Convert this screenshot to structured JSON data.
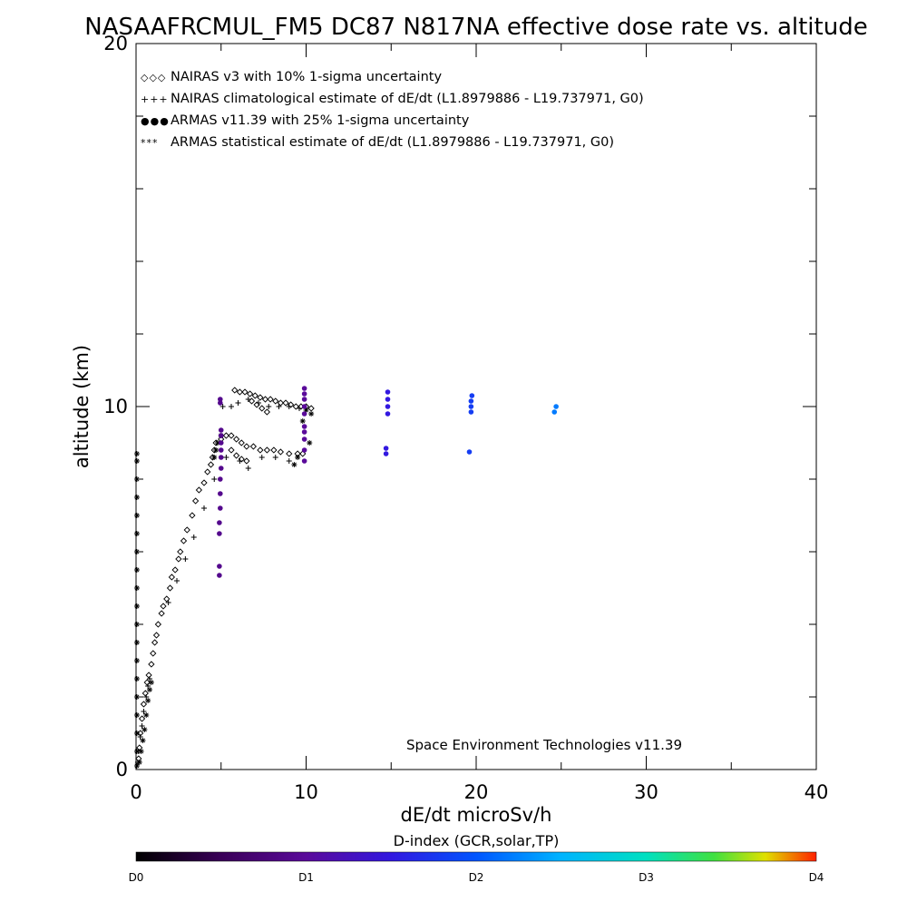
{
  "chart_data": {
    "type": "scatter",
    "title": "NASAAFRCMUL_FM5 DC87 N817NA effective dose rate vs. altitude",
    "xlabel": "dE/dt microSv/h",
    "ylabel": "altitude (km)",
    "xlim": [
      0,
      40
    ],
    "ylim": [
      0,
      20
    ],
    "x_ticks": [
      0,
      10,
      20,
      30,
      40
    ],
    "x_minor_step": 5,
    "y_ticks": [
      0,
      10,
      20
    ],
    "y_minor_step": 2,
    "grid": false,
    "legend_position": "top-left",
    "annotation": "Space Environment Technologies v11.39",
    "legend": [
      {
        "marker": "◇◇◇",
        "text": "NAIRAS v3 with 10% 1-sigma uncertainty",
        "color": "#000000"
      },
      {
        "marker": "+++",
        "text": "NAIRAS climatological estimate of dE/dt (L1.8979886 - L19.737971, G0)",
        "color": "#000000"
      },
      {
        "marker": "●●●",
        "text": "ARMAS v11.39 with 25% 1-sigma uncertainty",
        "color": "#1e32dc"
      },
      {
        "marker": "***",
        "text": "ARMAS statistical estimate of dE/dt (L1.8979886 - L19.737971, G0)",
        "color": "#000000"
      }
    ],
    "series": [
      {
        "name": "NAIRAS v3 with 10% 1-sigma uncertainty",
        "marker": "diamond",
        "color": "#000000",
        "points": [
          [
            0.15,
            0.3
          ],
          [
            0.2,
            0.6
          ],
          [
            0.25,
            1.0
          ],
          [
            0.35,
            1.4
          ],
          [
            0.45,
            1.8
          ],
          [
            0.55,
            2.1
          ],
          [
            0.65,
            2.4
          ],
          [
            0.75,
            2.6
          ],
          [
            0.9,
            2.9
          ],
          [
            1.0,
            3.2
          ],
          [
            1.1,
            3.5
          ],
          [
            1.2,
            3.7
          ],
          [
            1.3,
            4.0
          ],
          [
            1.5,
            4.3
          ],
          [
            1.6,
            4.5
          ],
          [
            1.8,
            4.7
          ],
          [
            2.0,
            5.0
          ],
          [
            2.1,
            5.3
          ],
          [
            2.3,
            5.5
          ],
          [
            2.5,
            5.8
          ],
          [
            2.6,
            6.0
          ],
          [
            2.8,
            6.3
          ],
          [
            3.0,
            6.6
          ],
          [
            3.3,
            7.0
          ],
          [
            3.5,
            7.4
          ],
          [
            3.7,
            7.7
          ],
          [
            4.0,
            7.9
          ],
          [
            4.2,
            8.2
          ],
          [
            4.4,
            8.4
          ],
          [
            4.5,
            8.6
          ],
          [
            4.6,
            8.8
          ],
          [
            4.7,
            9.0
          ],
          [
            5.0,
            9.1
          ],
          [
            5.3,
            9.2
          ],
          [
            5.6,
            9.2
          ],
          [
            5.9,
            9.1
          ],
          [
            6.2,
            9.0
          ],
          [
            6.5,
            8.9
          ],
          [
            6.9,
            8.9
          ],
          [
            7.3,
            8.8
          ],
          [
            7.7,
            8.8
          ],
          [
            8.1,
            8.8
          ],
          [
            8.5,
            8.75
          ],
          [
            9.0,
            8.7
          ],
          [
            9.5,
            8.7
          ],
          [
            9.8,
            8.7
          ],
          [
            5.6,
            8.8
          ],
          [
            5.9,
            8.65
          ],
          [
            6.2,
            8.55
          ],
          [
            6.5,
            8.5
          ],
          [
            5.8,
            10.45
          ],
          [
            6.1,
            10.4
          ],
          [
            6.4,
            10.4
          ],
          [
            6.7,
            10.35
          ],
          [
            7.0,
            10.3
          ],
          [
            7.3,
            10.25
          ],
          [
            7.6,
            10.2
          ],
          [
            7.9,
            10.2
          ],
          [
            8.2,
            10.15
          ],
          [
            8.5,
            10.1
          ],
          [
            8.8,
            10.1
          ],
          [
            9.1,
            10.05
          ],
          [
            9.4,
            10.0
          ],
          [
            9.7,
            10.0
          ],
          [
            10.0,
            10.0
          ],
          [
            10.3,
            9.95
          ],
          [
            6.8,
            10.15
          ],
          [
            7.1,
            10.05
          ],
          [
            7.4,
            9.95
          ],
          [
            7.7,
            9.85
          ]
        ]
      },
      {
        "name": "NAIRAS climatological estimate of dE/dt (L1.8979886 - L19.737971, G0)",
        "marker": "plus",
        "color": "#000000",
        "points": [
          [
            0.1,
            0.2
          ],
          [
            0.15,
            0.5
          ],
          [
            0.25,
            0.9
          ],
          [
            0.35,
            1.2
          ],
          [
            0.45,
            1.6
          ],
          [
            0.6,
            2.0
          ],
          [
            0.7,
            2.3
          ],
          [
            0.8,
            2.5
          ],
          [
            1.9,
            4.6
          ],
          [
            2.4,
            5.2
          ],
          [
            2.9,
            5.8
          ],
          [
            3.4,
            6.4
          ],
          [
            4.0,
            7.2
          ],
          [
            4.6,
            8.0
          ],
          [
            5.1,
            10.0
          ],
          [
            5.6,
            10.0
          ],
          [
            6.0,
            10.1
          ],
          [
            6.6,
            10.2
          ],
          [
            7.2,
            10.1
          ],
          [
            7.8,
            10.0
          ],
          [
            8.4,
            10.0
          ],
          [
            9.0,
            10.0
          ],
          [
            9.6,
            9.95
          ],
          [
            5.3,
            8.6
          ],
          [
            6.1,
            8.5
          ],
          [
            6.6,
            8.3
          ],
          [
            7.4,
            8.6
          ],
          [
            8.2,
            8.6
          ],
          [
            9.0,
            8.5
          ]
        ]
      },
      {
        "name": "ARMAS statistical estimate of dE/dt (L1.8979886 - L19.737971, G0)",
        "marker": "asterisk",
        "color": "#000000",
        "points": [
          [
            0.05,
            0.1
          ],
          [
            0.05,
            0.5
          ],
          [
            0.05,
            1.0
          ],
          [
            0.05,
            1.5
          ],
          [
            0.05,
            2.0
          ],
          [
            0.05,
            2.5
          ],
          [
            0.05,
            3.0
          ],
          [
            0.05,
            3.5
          ],
          [
            0.05,
            4.0
          ],
          [
            0.05,
            4.5
          ],
          [
            0.05,
            5.0
          ],
          [
            0.05,
            5.5
          ],
          [
            0.05,
            6.0
          ],
          [
            0.05,
            6.5
          ],
          [
            0.05,
            7.0
          ],
          [
            0.05,
            7.5
          ],
          [
            0.05,
            8.0
          ],
          [
            0.05,
            8.5
          ],
          [
            0.05,
            8.7
          ],
          [
            0.2,
            0.2
          ],
          [
            0.3,
            0.5
          ],
          [
            0.4,
            0.8
          ],
          [
            0.5,
            1.1
          ],
          [
            0.6,
            1.5
          ],
          [
            0.7,
            1.9
          ],
          [
            0.8,
            2.2
          ],
          [
            0.9,
            2.4
          ],
          [
            4.6,
            8.6
          ],
          [
            4.7,
            8.8
          ],
          [
            4.8,
            9.0
          ],
          [
            5.0,
            9.2
          ],
          [
            9.3,
            8.4
          ],
          [
            9.5,
            8.6
          ],
          [
            10.2,
            9.0
          ],
          [
            9.8,
            9.6
          ],
          [
            10.0,
            9.9
          ],
          [
            10.3,
            9.8
          ]
        ]
      },
      {
        "name": "ARMAS v11.39 with 25% 1-sigma uncertainty",
        "marker": "dot",
        "color_scale": "D-index",
        "points": [
          [
            4.9,
            5.35,
            0.9
          ],
          [
            4.9,
            5.6,
            0.9
          ],
          [
            4.9,
            6.5,
            0.9
          ],
          [
            4.9,
            6.8,
            0.9
          ],
          [
            4.95,
            7.2,
            0.9
          ],
          [
            4.95,
            7.6,
            0.9
          ],
          [
            4.95,
            8.0,
            0.9
          ],
          [
            5.0,
            8.3,
            0.9
          ],
          [
            5.0,
            8.6,
            0.9
          ],
          [
            5.0,
            8.8,
            0.9
          ],
          [
            5.0,
            9.0,
            0.9
          ],
          [
            5.0,
            9.2,
            0.9
          ],
          [
            5.0,
            9.35,
            0.9
          ],
          [
            4.95,
            10.1,
            0.9
          ],
          [
            4.95,
            10.2,
            0.9
          ],
          [
            9.9,
            8.5,
            1.0
          ],
          [
            9.9,
            8.8,
            1.0
          ],
          [
            9.9,
            9.1,
            1.0
          ],
          [
            9.9,
            9.3,
            1.0
          ],
          [
            9.9,
            9.45,
            1.0
          ],
          [
            9.9,
            9.8,
            1.0
          ],
          [
            9.9,
            10.0,
            1.0
          ],
          [
            9.9,
            10.2,
            1.0
          ],
          [
            9.9,
            10.35,
            1.0
          ],
          [
            9.9,
            10.5,
            1.0
          ],
          [
            14.7,
            8.7,
            1.5
          ],
          [
            14.7,
            8.85,
            1.5
          ],
          [
            14.8,
            9.8,
            1.5
          ],
          [
            14.8,
            10.0,
            1.5
          ],
          [
            14.8,
            10.2,
            1.5
          ],
          [
            14.8,
            10.4,
            1.5
          ],
          [
            19.6,
            8.75,
            1.8
          ],
          [
            19.7,
            9.85,
            1.8
          ],
          [
            19.7,
            10.0,
            1.8
          ],
          [
            19.7,
            10.15,
            1.8
          ],
          [
            19.75,
            10.3,
            1.8
          ],
          [
            24.6,
            9.85,
            2.2
          ],
          [
            24.7,
            10.0,
            2.2
          ]
        ]
      }
    ]
  },
  "colorbar": {
    "title": "D-index (GCR,solar,TP)",
    "labels": [
      "D0",
      "D1",
      "D2",
      "D3",
      "D4"
    ],
    "label_positions": [
      0,
      1,
      2,
      3,
      4
    ],
    "range": [
      0,
      4
    ],
    "stops": [
      {
        "value": 0.0,
        "color": "#000000"
      },
      {
        "value": 0.5,
        "color": "#3a0058"
      },
      {
        "value": 1.0,
        "color": "#5a0a9a"
      },
      {
        "value": 1.5,
        "color": "#3218e0"
      },
      {
        "value": 2.0,
        "color": "#0055ff"
      },
      {
        "value": 2.5,
        "color": "#00b4ff"
      },
      {
        "value": 3.0,
        "color": "#00e0c0"
      },
      {
        "value": 3.4,
        "color": "#40e040"
      },
      {
        "value": 3.7,
        "color": "#e0e000"
      },
      {
        "value": 4.0,
        "color": "#ff2000"
      }
    ]
  }
}
